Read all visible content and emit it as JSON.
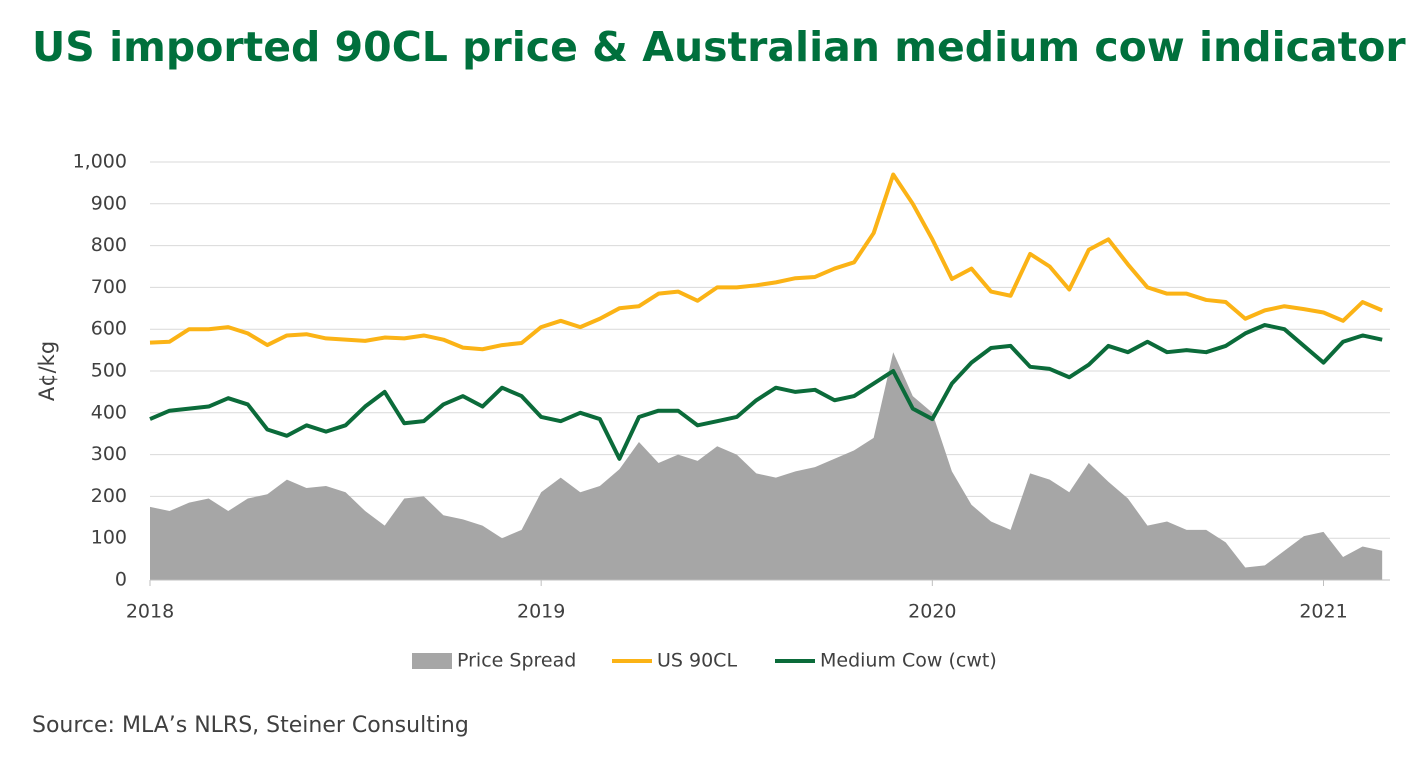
{
  "chart_data": {
    "type": "line",
    "title": "US imported 90CL price & Australian medium cow indicator",
    "y_label": "A¢/kg",
    "source": "Source: MLA’s NLRS, Steiner Consulting",
    "x": [
      2018,
      2018.05,
      2018.1,
      2018.15,
      2018.2,
      2018.25,
      2018.3,
      2018.35,
      2018.4,
      2018.45,
      2018.5,
      2018.55,
      2018.6,
      2018.65,
      2018.7,
      2018.75,
      2018.8,
      2018.85,
      2018.9,
      2018.95,
      2019,
      2019.05,
      2019.1,
      2019.15,
      2019.2,
      2019.25,
      2019.3,
      2019.35,
      2019.4,
      2019.45,
      2019.5,
      2019.55,
      2019.6,
      2019.65,
      2019.7,
      2019.75,
      2019.8,
      2019.85,
      2019.9,
      2019.95,
      2020,
      2020.05,
      2020.1,
      2020.15,
      2020.2,
      2020.25,
      2020.3,
      2020.35,
      2020.4,
      2020.45,
      2020.5,
      2020.55,
      2020.6,
      2020.65,
      2020.7,
      2020.75,
      2020.8,
      2020.85,
      2020.9,
      2020.95,
      2021,
      2021.05,
      2021.1,
      2021.15
    ],
    "series": [
      {
        "name": "Price Spread",
        "type": "area",
        "color": "#a6a6a6",
        "values": [
          175,
          165,
          185,
          195,
          165,
          195,
          205,
          240,
          220,
          225,
          210,
          165,
          130,
          195,
          200,
          155,
          145,
          130,
          100,
          120,
          210,
          245,
          210,
          225,
          265,
          330,
          280,
          300,
          285,
          320,
          300,
          255,
          245,
          260,
          270,
          290,
          310,
          340,
          545,
          440,
          400,
          260,
          180,
          140,
          120,
          255,
          240,
          210,
          280,
          235,
          195,
          130,
          140,
          120,
          120,
          90,
          30,
          35,
          70,
          105,
          115,
          55,
          80,
          70
        ]
      },
      {
        "name": "US 90CL",
        "type": "line",
        "color": "#fbb316",
        "values": [
          568,
          570,
          600,
          600,
          605,
          590,
          562,
          585,
          588,
          578,
          575,
          572,
          580,
          578,
          585,
          575,
          556,
          552,
          562,
          567,
          605,
          620,
          605,
          625,
          650,
          655,
          685,
          690,
          668,
          700,
          700,
          705,
          712,
          722,
          725,
          745,
          760,
          830,
          970,
          900,
          815,
          720,
          745,
          690,
          680,
          780,
          750,
          695,
          790,
          815,
          755,
          700,
          685,
          685,
          670,
          665,
          625,
          645,
          655,
          648,
          640,
          620,
          665,
          645
        ]
      },
      {
        "name": "Medium Cow (cwt)",
        "type": "line",
        "color": "#0b6b3a",
        "values": [
          385,
          405,
          410,
          415,
          435,
          420,
          360,
          345,
          370,
          355,
          370,
          415,
          450,
          375,
          380,
          420,
          440,
          415,
          460,
          440,
          390,
          380,
          400,
          385,
          290,
          390,
          405,
          405,
          370,
          380,
          390,
          430,
          460,
          450,
          455,
          430,
          440,
          470,
          500,
          410,
          385,
          470,
          520,
          555,
          560,
          510,
          505,
          485,
          515,
          560,
          545,
          570,
          545,
          550,
          545,
          560,
          590,
          610,
          600,
          560,
          520,
          570,
          585,
          575
        ]
      }
    ],
    "xlim": [
      2018,
      2021.17
    ],
    "xticks": [
      2018,
      2019,
      2020,
      2021
    ],
    "ylim": [
      0,
      1000
    ],
    "yticks": [
      0,
      100,
      200,
      300,
      400,
      500,
      600,
      700,
      800,
      900,
      {
        "value": 1000,
        "label": "1,000"
      }
    ],
    "grid": true,
    "legend": "bottom"
  }
}
